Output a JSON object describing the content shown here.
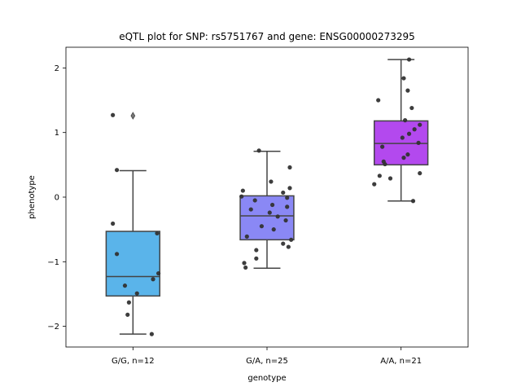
{
  "chart_data": {
    "type": "box",
    "title": "eQTL plot for SNP: rs5751767 and gene: ENSG00000273295",
    "xlabel": "genotype",
    "ylabel": "phenotype",
    "ylim": [
      -2.32,
      2.32
    ],
    "yticks": [
      -2,
      -1,
      0,
      1,
      2
    ],
    "ytick_labels": [
      "−2",
      "−1",
      "0",
      "1",
      "2"
    ],
    "categories": [
      "G/G, n=12",
      "G/A, n=25",
      "A/A, n=21"
    ],
    "groups": [
      {
        "label": "G/G, n=12",
        "color": "#5ab4ea",
        "q1": -1.53,
        "median": -1.23,
        "q3": -0.53,
        "whisker_low": -2.12,
        "whisker_high": 0.41,
        "outliers": [
          1.26
        ],
        "points": [
          {
            "x": -0.15,
            "y": 1.27
          },
          {
            "x": -0.12,
            "y": 0.42
          },
          {
            "x": -0.15,
            "y": -0.41
          },
          {
            "x": 0.18,
            "y": -0.56
          },
          {
            "x": -0.12,
            "y": -0.88
          },
          {
            "x": 0.19,
            "y": -1.18
          },
          {
            "x": 0.15,
            "y": -1.27
          },
          {
            "x": -0.06,
            "y": -1.37
          },
          {
            "x": 0.03,
            "y": -1.49
          },
          {
            "x": -0.03,
            "y": -1.63
          },
          {
            "x": -0.04,
            "y": -1.82
          },
          {
            "x": 0.14,
            "y": -2.12
          }
        ]
      },
      {
        "label": "G/A, n=25",
        "color": "#8a88f5",
        "q1": -0.66,
        "median": -0.29,
        "q3": 0.02,
        "whisker_low": -1.1,
        "whisker_high": 0.71,
        "outliers": [],
        "points": [
          {
            "x": -0.06,
            "y": 0.72
          },
          {
            "x": 0.17,
            "y": 0.46
          },
          {
            "x": 0.03,
            "y": 0.24
          },
          {
            "x": 0.17,
            "y": 0.14
          },
          {
            "x": -0.18,
            "y": 0.1
          },
          {
            "x": 0.12,
            "y": 0.07
          },
          {
            "x": -0.19,
            "y": 0.01
          },
          {
            "x": 0.15,
            "y": -0.01
          },
          {
            "x": -0.09,
            "y": -0.05
          },
          {
            "x": 0.04,
            "y": -0.12
          },
          {
            "x": 0.15,
            "y": -0.15
          },
          {
            "x": -0.12,
            "y": -0.19
          },
          {
            "x": 0.02,
            "y": -0.24
          },
          {
            "x": 0.08,
            "y": -0.3
          },
          {
            "x": 0.14,
            "y": -0.36
          },
          {
            "x": -0.04,
            "y": -0.45
          },
          {
            "x": 0.05,
            "y": -0.5
          },
          {
            "x": -0.15,
            "y": -0.61
          },
          {
            "x": 0.18,
            "y": -0.66
          },
          {
            "x": 0.12,
            "y": -0.72
          },
          {
            "x": 0.16,
            "y": -0.77
          },
          {
            "x": -0.08,
            "y": -0.82
          },
          {
            "x": -0.08,
            "y": -0.95
          },
          {
            "x": -0.17,
            "y": -1.02
          },
          {
            "x": -0.16,
            "y": -1.09
          }
        ]
      },
      {
        "label": "A/A, n=21",
        "color": "#b349ee",
        "q1": 0.5,
        "median": 0.83,
        "q3": 1.18,
        "whisker_low": -0.06,
        "whisker_high": 2.13,
        "outliers": [],
        "points": [
          {
            "x": 0.06,
            "y": 2.13
          },
          {
            "x": 0.02,
            "y": 1.84
          },
          {
            "x": 0.05,
            "y": 1.65
          },
          {
            "x": -0.17,
            "y": 1.5
          },
          {
            "x": 0.08,
            "y": 1.38
          },
          {
            "x": 0.03,
            "y": 1.19
          },
          {
            "x": 0.14,
            "y": 1.12
          },
          {
            "x": 0.1,
            "y": 1.05
          },
          {
            "x": 0.06,
            "y": 0.98
          },
          {
            "x": 0.01,
            "y": 0.92
          },
          {
            "x": 0.13,
            "y": 0.84
          },
          {
            "x": -0.14,
            "y": 0.78
          },
          {
            "x": 0.05,
            "y": 0.66
          },
          {
            "x": 0.02,
            "y": 0.61
          },
          {
            "x": -0.13,
            "y": 0.55
          },
          {
            "x": -0.12,
            "y": 0.51
          },
          {
            "x": 0.14,
            "y": 0.37
          },
          {
            "x": -0.16,
            "y": 0.33
          },
          {
            "x": -0.08,
            "y": 0.29
          },
          {
            "x": -0.2,
            "y": 0.2
          },
          {
            "x": 0.09,
            "y": -0.06
          }
        ]
      }
    ],
    "grid": false,
    "legend": "none"
  }
}
